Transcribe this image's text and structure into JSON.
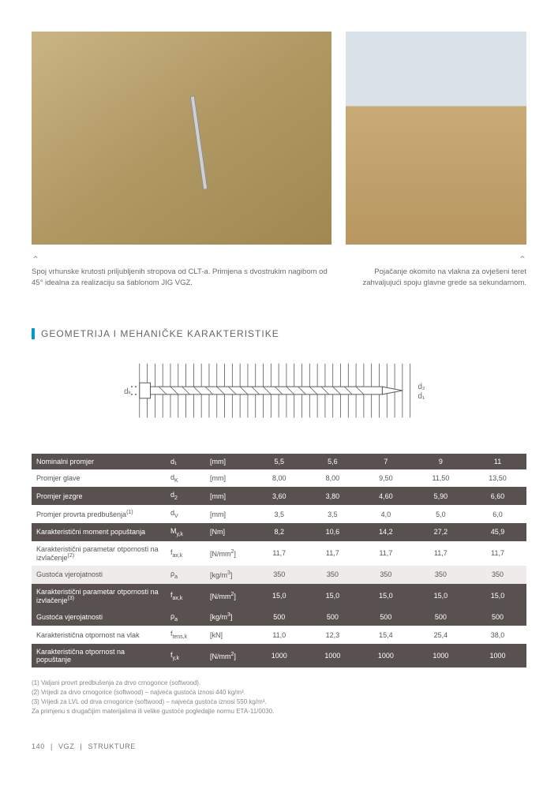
{
  "images": {
    "left_caption": "Spoj vrhunske krutosti priljubljenih stropova od CLT-a. Primjena s dvostrukim nagibom od 45° idealna za realizaciju sa šablonom JIG VGZ.",
    "right_caption": "Pojačanje okomito na vlakna za ovješeni teret zahvaljujući spoju glavne grede sa sekundarnom."
  },
  "section": {
    "title": "GEOMETRIJA I MEHANIČKE KARAKTERISTIKE"
  },
  "diagram": {
    "labels": {
      "dk": "dₖ",
      "d2": "d₂",
      "d1": "d₁"
    }
  },
  "table": {
    "headers": {
      "col0": "Nominalni promjer",
      "sym": "d₁",
      "unit": "[mm]",
      "v1": "5,5",
      "v2": "5,6",
      "v3": "7",
      "v4": "9",
      "v5": "11"
    },
    "rows": [
      {
        "cls": "row-light",
        "label": "Promjer glave",
        "sym": "d<sub>K</sub>",
        "unit": "[mm]",
        "v": [
          "8,00",
          "8,00",
          "9,50",
          "11,50",
          "13,50"
        ]
      },
      {
        "cls": "row-dark",
        "label": "Promjer jezgre",
        "sym": "d<sub>2</sub>",
        "unit": "[mm]",
        "v": [
          "3,60",
          "3,80",
          "4,60",
          "5,90",
          "6,60"
        ]
      },
      {
        "cls": "row-light",
        "label": "Promjer provrta predbušenja<sup>(1)</sup>",
        "sym": "d<sub>V</sub>",
        "unit": "[mm]",
        "v": [
          "3,5",
          "3,5",
          "4,0",
          "5,0",
          "6,0"
        ]
      },
      {
        "cls": "row-dark",
        "label": "Karakteristični moment popuštanja",
        "sym": "M<sub>y,k</sub>",
        "unit": "[Nm]",
        "v": [
          "8,2",
          "10,6",
          "14,2",
          "27,2",
          "45,9"
        ]
      },
      {
        "cls": "row-light",
        "label": "Karakteristični parametar otpornosti na izvlačenje<sup>(2)</sup>",
        "sym": "f<sub>ax,k</sub>",
        "unit": "[N/mm<sup>2</sup>]",
        "v": [
          "11,7",
          "11,7",
          "11,7",
          "11,7",
          "11,7"
        ]
      },
      {
        "cls": "row-gray",
        "label": "Gustoća vjerojatnosti",
        "sym": "ρ<sub>a</sub>",
        "unit": "[kg/m<sup>3</sup>]",
        "v": [
          "350",
          "350",
          "350",
          "350",
          "350"
        ]
      },
      {
        "cls": "row-dark",
        "label": "Karakteristični parametar otpornosti na izvlačenje<sup>(3)</sup>",
        "sym": "f<sub>ax,k</sub>",
        "unit": "[N/mm<sup>2</sup>]",
        "v": [
          "15,0",
          "15,0",
          "15,0",
          "15,0",
          "15,0"
        ]
      },
      {
        "cls": "row-dark",
        "label": "Gustoća vjerojatnosti",
        "sym": "ρ<sub>a</sub>",
        "unit": "[kg/m<sup>3</sup>]",
        "v": [
          "500",
          "500",
          "500",
          "500",
          "500"
        ]
      },
      {
        "cls": "row-light",
        "label": "Karakteristična otpornost na vlak",
        "sym": "f<sub>tens,k</sub>",
        "unit": "[kN]",
        "v": [
          "11,0",
          "12,3",
          "15,4",
          "25,4",
          "38,0"
        ]
      },
      {
        "cls": "row-dark",
        "label": "Karakteristična otpornost na popuštanje",
        "sym": "f<sub>y,k</sub>",
        "unit": "[N/mm<sup>2</sup>]",
        "v": [
          "1000",
          "1000",
          "1000",
          "1000",
          "1000"
        ]
      }
    ]
  },
  "footnotes": {
    "f1": "(1) Valjani provrt predbušenja za drvo crnogorice (softwood).",
    "f2": "(2) Vrijedi za drvo crnogorice (softwood) – najveća gustoća iznosi 440 kg/m³.",
    "f3": "(3) Vrijedi za LVL od drva crnogorice (softwood) – najveća gustoća iznosi 550 kg/m³.",
    "f4": "Za primjenu s drugačijim materijalima ili velike gustoće pogledajte normu ETA-11/0030."
  },
  "footer": {
    "page": "140",
    "brand": "VGZ",
    "section": "STRUKTURE"
  }
}
